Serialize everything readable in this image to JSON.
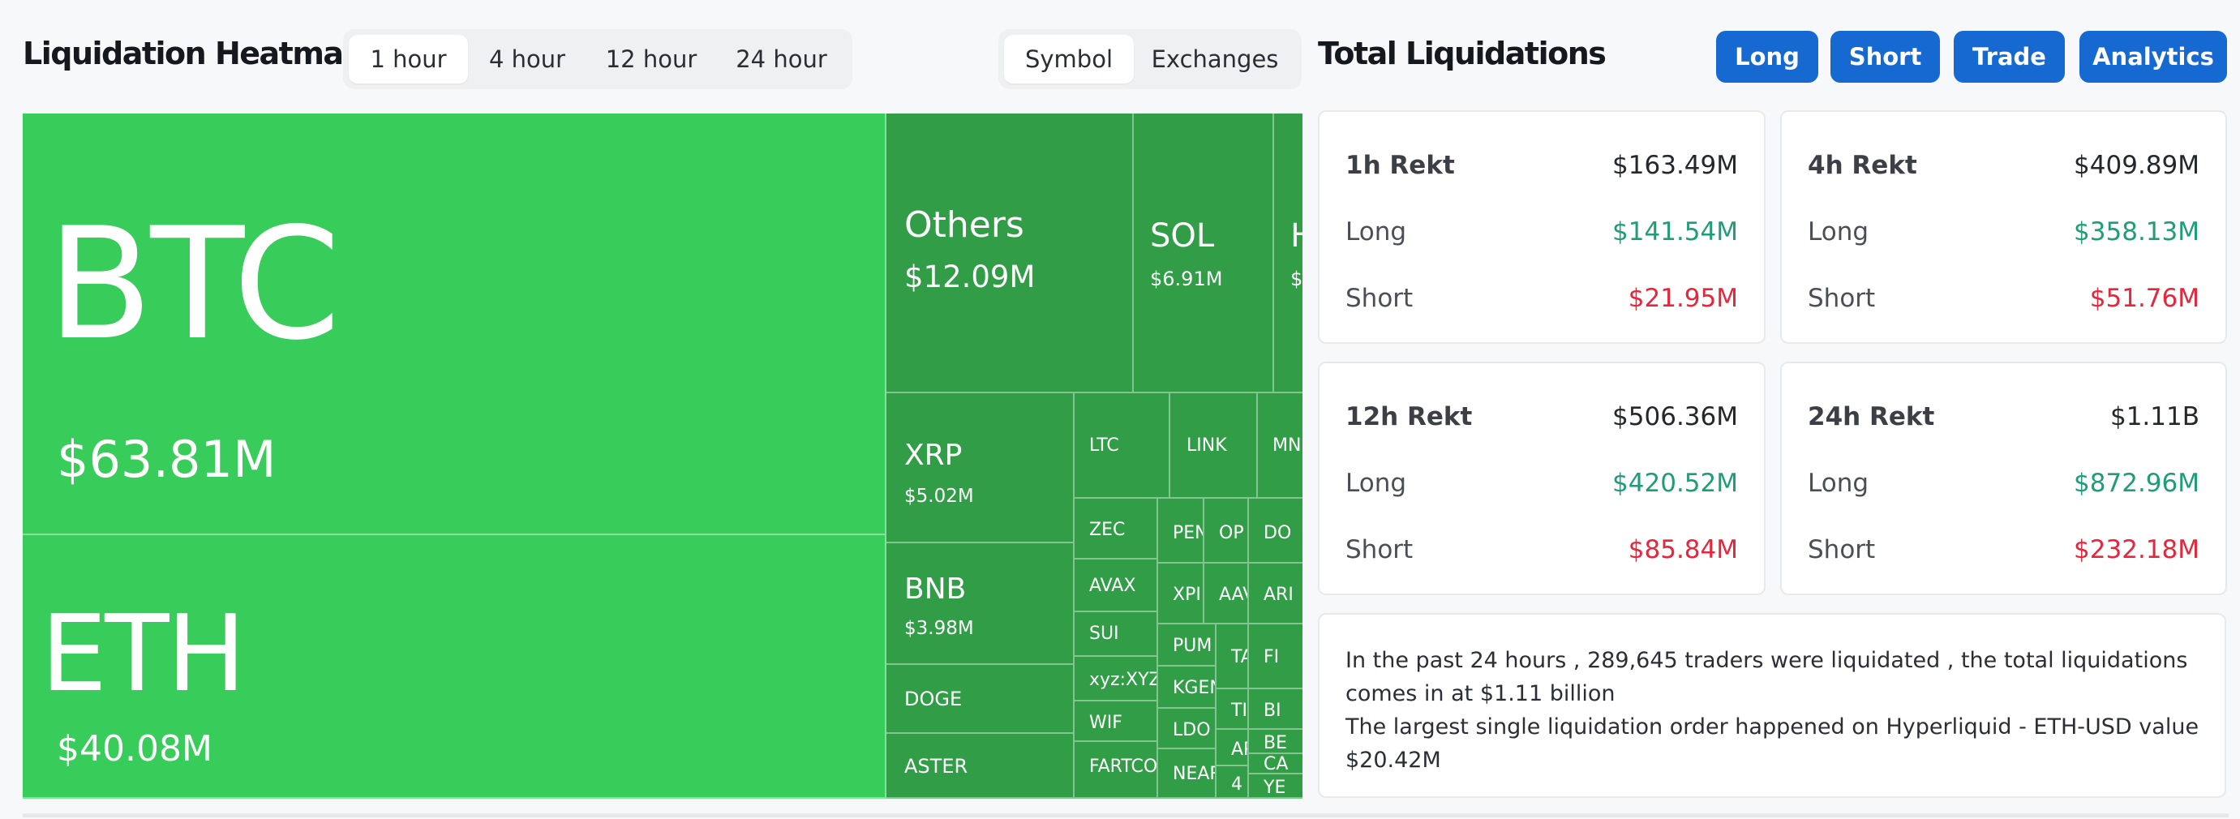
{
  "heatmap": {
    "title": "Liquidation Heatmap",
    "time_tabs": [
      "1 hour",
      "4 hour",
      "12 hour",
      "24 hour"
    ],
    "active_time_tab": "1 hour",
    "group_tabs": [
      "Symbol",
      "Exchanges"
    ],
    "active_group_tab": "Symbol"
  },
  "treemap": [
    {
      "symbol": "BTC",
      "value": "$63.81M",
      "color": "#38cc5a"
    },
    {
      "symbol": "ETH",
      "value": "$40.08M",
      "color": "#38cc5a"
    },
    {
      "symbol": "Others",
      "value": "$12.09M",
      "color": "#319d47"
    },
    {
      "symbol": "SOL",
      "value": "$6.91M",
      "color": "#319d47"
    },
    {
      "symbol": "H",
      "value": "$",
      "color": "#319d47"
    },
    {
      "symbol": "XRP",
      "value": "$5.02M",
      "color": "#319d47"
    },
    {
      "symbol": "BNB",
      "value": "$3.98M",
      "color": "#319d47"
    },
    {
      "symbol": "DOGE",
      "value": "",
      "color": "#319d47"
    },
    {
      "symbol": "ASTER",
      "value": "",
      "color": "#319d47"
    },
    {
      "symbol": "LTC",
      "value": "",
      "color": "#319d47"
    },
    {
      "symbol": "LINK",
      "value": "",
      "color": "#319d47"
    },
    {
      "symbol": "MN",
      "value": "",
      "color": "#319d47"
    },
    {
      "symbol": "ZEC",
      "value": "",
      "color": "#319d47"
    },
    {
      "symbol": "AVAX",
      "value": "",
      "color": "#319d47"
    },
    {
      "symbol": "SUI",
      "value": "",
      "color": "#319d47"
    },
    {
      "symbol": "xyz:XYZ",
      "value": "",
      "color": "#319d47"
    },
    {
      "symbol": "WIF",
      "value": "",
      "color": "#319d47"
    },
    {
      "symbol": "FARTCO",
      "value": "",
      "color": "#319d47"
    },
    {
      "symbol": "PEN",
      "value": "",
      "color": "#319d47"
    },
    {
      "symbol": "OP",
      "value": "",
      "color": "#319d47"
    },
    {
      "symbol": "DO",
      "value": "",
      "color": "#319d47"
    },
    {
      "symbol": "XPI",
      "value": "",
      "color": "#319d47"
    },
    {
      "symbol": "AAV",
      "value": "",
      "color": "#319d47"
    },
    {
      "symbol": "ARI",
      "value": "",
      "color": "#319d47"
    },
    {
      "symbol": "PUM",
      "value": "",
      "color": "#319d47"
    },
    {
      "symbol": "TA",
      "value": "",
      "color": "#319d47"
    },
    {
      "symbol": "FI",
      "value": "",
      "color": "#319d47"
    },
    {
      "symbol": "KGEN",
      "value": "",
      "color": "#319d47"
    },
    {
      "symbol": "TIA",
      "value": "",
      "color": "#319d47"
    },
    {
      "symbol": "BI",
      "value": "",
      "color": "#319d47"
    },
    {
      "symbol": "LDO",
      "value": "",
      "color": "#319d47"
    },
    {
      "symbol": "APT",
      "value": "",
      "color": "#319d47"
    },
    {
      "symbol": "BE",
      "value": "",
      "color": "#319d47"
    },
    {
      "symbol": "CA",
      "value": "",
      "color": "#319d47"
    },
    {
      "symbol": "NEAR",
      "value": "",
      "color": "#319d47"
    },
    {
      "symbol": "4",
      "value": "",
      "color": "#319d47"
    },
    {
      "symbol": "YE",
      "value": "",
      "color": "#319d47"
    }
  ],
  "totals": {
    "title": "Total Liquidations",
    "buttons": [
      "Long",
      "Short",
      "Trade",
      "Analytics"
    ],
    "cards": [
      {
        "label": "1h Rekt",
        "total": "$163.49M",
        "long_label": "Long",
        "long": "$141.54M",
        "short_label": "Short",
        "short": "$21.95M"
      },
      {
        "label": "4h Rekt",
        "total": "$409.89M",
        "long_label": "Long",
        "long": "$358.13M",
        "short_label": "Short",
        "short": "$51.76M"
      },
      {
        "label": "12h Rekt",
        "total": "$506.36M",
        "long_label": "Long",
        "long": "$420.52M",
        "short_label": "Short",
        "short": "$85.84M"
      },
      {
        "label": "24h Rekt",
        "total": "$1.11B",
        "long_label": "Long",
        "long": "$872.96M",
        "short_label": "Short",
        "short": "$232.18M"
      }
    ],
    "summary_line1": "In the past 24 hours , 289,645 traders were liquidated , the total liquidations comes in at $1.11 billion",
    "summary_line2": "The largest single liquidation order happened on Hyperliquid - ETH-USD value $20.42M"
  },
  "colors": {
    "primary_button": "#1769d2",
    "long_green": "#1f9d79",
    "short_red": "#e5263d",
    "tile_big": "#38cc5a",
    "tile_small": "#319d47"
  }
}
